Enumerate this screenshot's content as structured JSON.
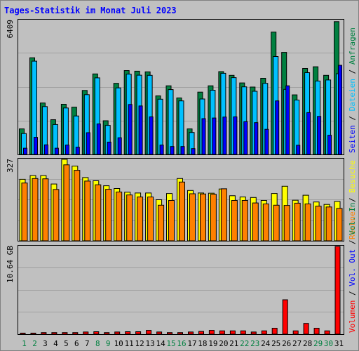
{
  "chart_data": {
    "title": "Tages-Statistik im Monat Juli 2023",
    "type": "bar",
    "days": [
      "1",
      "2",
      "3",
      "4",
      "5",
      "6",
      "7",
      "8",
      "9",
      "10",
      "11",
      "12",
      "13",
      "14",
      "15",
      "16",
      "17",
      "18",
      "19",
      "20",
      "21",
      "22",
      "23",
      "24",
      "25",
      "26",
      "27",
      "28",
      "29",
      "30",
      "31"
    ],
    "weekend_days": [
      "1",
      "2",
      "8",
      "9",
      "15",
      "16",
      "22",
      "23",
      "29",
      "30"
    ],
    "colors": {
      "anfragen": "#008040",
      "dateien": "#00c0ff",
      "seiten": "#0000ff",
      "besuche": "#ffff00",
      "rechner": "#ff8000",
      "volumen": "#ff0000",
      "weekday_label": "#000000",
      "weekend_label": "#008040",
      "panel_bg": "#c0c0c0"
    },
    "panels": {
      "requests": {
        "max_label": "6409",
        "ymax": 6409,
        "labels": {
          "seiten": "Seiten",
          "dateien": "Dateien",
          "anfragen": "Anfragen"
        },
        "series": {
          "anfragen": [
            1220,
            4620,
            2460,
            1660,
            2400,
            2260,
            3060,
            3850,
            1610,
            3400,
            4010,
            3980,
            3950,
            2800,
            3280,
            2700,
            1220,
            2980,
            3280,
            3960,
            3780,
            3420,
            3220,
            3640,
            5850,
            4880,
            2850,
            4110,
            4190,
            3780,
            6350
          ],
          "dateien": [
            1000,
            4460,
            2290,
            1430,
            2220,
            1840,
            2860,
            3660,
            1390,
            3180,
            3840,
            3790,
            3780,
            2640,
            3100,
            2560,
            1050,
            2650,
            3070,
            3880,
            3670,
            3230,
            3020,
            3400,
            4680,
            3110,
            2600,
            3910,
            3510,
            3560,
            3860
          ],
          "seiten": [
            300,
            820,
            460,
            300,
            450,
            350,
            1040,
            1460,
            590,
            800,
            2390,
            2320,
            1800,
            450,
            380,
            380,
            280,
            1710,
            1740,
            1790,
            1800,
            1570,
            1520,
            1200,
            2560,
            3280,
            440,
            2000,
            1820,
            920,
            4260
          ]
        }
      },
      "visits": {
        "max_label": "327",
        "ymax": 327,
        "labels": {
          "rechner": "Rechner",
          "besuche": "Besuche"
        },
        "series": {
          "besuche": [
            247,
            262,
            262,
            228,
            327,
            300,
            254,
            241,
            221,
            210,
            195,
            192,
            192,
            165,
            190,
            250,
            202,
            192,
            191,
            208,
            181,
            176,
            174,
            162,
            190,
            219,
            163,
            183,
            156,
            146,
            158
          ],
          "rechner": [
            232,
            250,
            249,
            206,
            305,
            283,
            240,
            225,
            207,
            196,
            184,
            176,
            176,
            143,
            162,
            236,
            189,
            188,
            187,
            209,
            162,
            162,
            152,
            148,
            143,
            142,
            151,
            148,
            139,
            136,
            130
          ]
        }
      },
      "volume": {
        "max_label": "10.64 GB",
        "ymax": 10.64,
        "unit": "GB",
        "labels": {
          "volumen": "Volumen",
          "vol_out": "Vol. Out",
          "vol_in": "Vol. In"
        },
        "series": {
          "volumen": [
            0.13,
            0.13,
            0.2,
            0.2,
            0.2,
            0.2,
            0.26,
            0.3,
            0.2,
            0.26,
            0.3,
            0.3,
            0.46,
            0.26,
            0.2,
            0.2,
            0.26,
            0.33,
            0.46,
            0.4,
            0.4,
            0.4,
            0.26,
            0.4,
            0.72,
            4.17,
            0.4,
            1.3,
            0.72,
            0.4,
            10.64
          ]
        }
      }
    }
  }
}
